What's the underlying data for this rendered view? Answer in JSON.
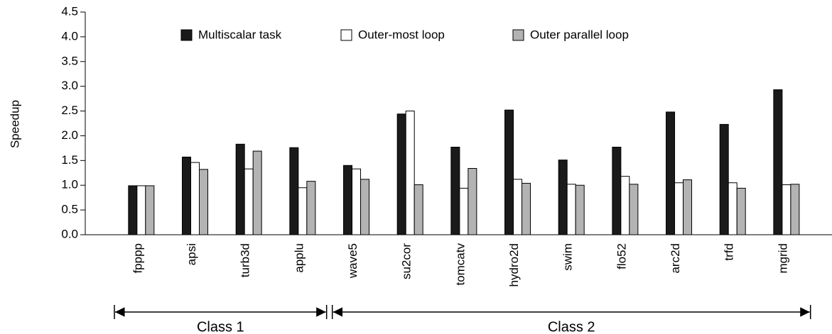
{
  "chart_data": {
    "type": "bar",
    "y_label": "Speedup",
    "categories": [
      "fpppp",
      "apsi",
      "turb3d",
      "applu",
      "wave5",
      "su2cor",
      "tomcatv",
      "hydro2d",
      "swim",
      "flo52",
      "arc2d",
      "trfd",
      "mgrid"
    ],
    "series": [
      {
        "name": "Multiscalar task",
        "color": "#1a1a1a",
        "values": [
          0.99,
          1.57,
          1.83,
          1.76,
          1.4,
          2.44,
          1.77,
          2.52,
          1.51,
          1.77,
          2.48,
          2.23,
          2.93
        ]
      },
      {
        "name": "Outer-most loop",
        "color": "#ffffff",
        "values": [
          0.99,
          1.46,
          1.33,
          0.95,
          1.33,
          2.5,
          0.94,
          1.12,
          1.02,
          1.18,
          1.05,
          1.05,
          1.01
        ]
      },
      {
        "name": "Outer parallel loop",
        "color": "#b3b3b3",
        "values": [
          0.99,
          1.32,
          1.69,
          1.08,
          1.12,
          1.01,
          1.34,
          1.04,
          1.0,
          1.02,
          1.11,
          0.94,
          1.02
        ]
      }
    ],
    "ylim": [
      0,
      4.5
    ],
    "yticks": [
      {
        "value": 0,
        "label": "0.0"
      },
      0.5,
      {
        "value": 1,
        "label": "1.0"
      },
      1.5,
      {
        "value": 2,
        "label": "2.0"
      },
      2.5,
      {
        "value": 3,
        "label": "3.0"
      },
      3.5,
      {
        "value": 4,
        "label": "4.0"
      },
      4.5
    ],
    "legend": "top",
    "groups": [
      {
        "label": "Class 1",
        "first": "fpppp",
        "last": "applu"
      },
      {
        "label": "Class 2",
        "first": "wave5",
        "last": "mgrid"
      }
    ]
  }
}
